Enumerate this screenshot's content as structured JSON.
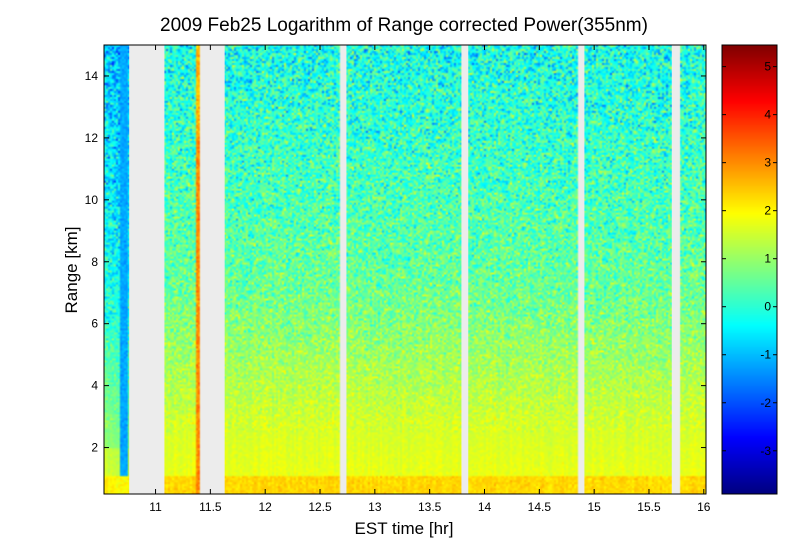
{
  "chart_data": {
    "type": "heatmap",
    "title": "2009 Feb25  Logarithm of Range corrected Power(355nm)",
    "xlabel": "EST time [hr]",
    "ylabel": "Range [km]",
    "xlim": [
      10.53,
      16.02
    ],
    "ylim": [
      0.5,
      15.0
    ],
    "x_ticks": [
      11,
      11.5,
      12,
      12.5,
      13,
      13.5,
      14,
      14.5,
      15,
      15.5,
      16
    ],
    "x_tick_labels": [
      "11",
      "11.5",
      "12",
      "12.5",
      "13",
      "13.5",
      "14",
      "14.5",
      "15",
      "15.5",
      "16"
    ],
    "y_ticks": [
      2,
      4,
      6,
      8,
      10,
      12,
      14
    ],
    "y_tick_labels": [
      "2",
      "4",
      "6",
      "8",
      "10",
      "12",
      "14"
    ],
    "colorbar": {
      "colormap": "jet",
      "clim": [
        -3.9,
        5.45
      ],
      "ticks": [
        -3,
        -2,
        -1,
        0,
        1,
        2,
        3,
        4,
        5
      ],
      "tick_labels": [
        "-3",
        "-2",
        "-1",
        "0",
        "1",
        "2",
        "3",
        "4",
        "5"
      ]
    },
    "data_gaps_hr": [
      [
        10.76,
        11.08
      ],
      [
        11.41,
        11.63
      ],
      [
        12.69,
        12.74
      ],
      [
        13.79,
        13.85
      ],
      [
        14.86,
        14.91
      ],
      [
        15.71,
        15.78
      ]
    ],
    "features": [
      {
        "label": "low signal column",
        "x_range": [
          10.68,
          10.74
        ],
        "value": -1.2
      },
      {
        "label": "high signal streak",
        "x_range": [
          11.36,
          11.4
        ],
        "value": 3.0
      }
    ],
    "surface_layer": {
      "range_km": [
        0.5,
        1.1
      ],
      "value": 2.3
    }
  }
}
